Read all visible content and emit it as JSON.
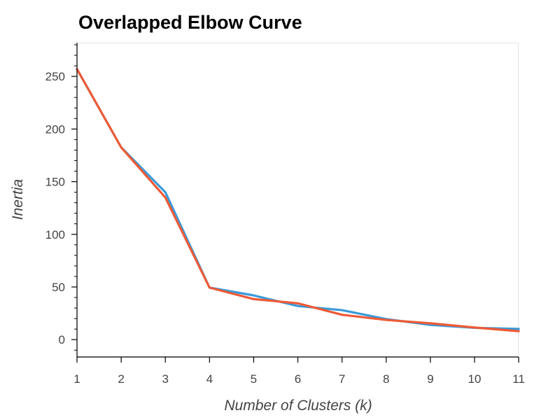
{
  "chart_data": {
    "type": "line",
    "title": "Overlapped Elbow Curve",
    "xlabel": "Number of Clusters (k)",
    "ylabel": "Inertia",
    "x": [
      1,
      2,
      3,
      4,
      5,
      6,
      7,
      8,
      9,
      10,
      11
    ],
    "xlim": [
      1,
      11
    ],
    "ylim": [
      -16.5,
      282
    ],
    "x_ticks": [
      1,
      2,
      3,
      4,
      5,
      6,
      7,
      8,
      9,
      10,
      11
    ],
    "y_ticks": [
      0,
      50,
      100,
      150,
      200,
      250
    ],
    "y_minor_step": 10,
    "grid": false,
    "legend": "none",
    "series": [
      {
        "color": "#3a9ad9",
        "values": [
          256.9,
          182.6,
          140.0,
          49.4,
          42.0,
          31.9,
          28.0,
          19.5,
          14.0,
          11.2,
          10.2
        ]
      },
      {
        "color": "#ee5a36",
        "values": [
          256.9,
          182.6,
          135.0,
          49.4,
          38.5,
          34.5,
          23.6,
          18.7,
          15.5,
          11.5,
          8.0
        ]
      }
    ]
  }
}
